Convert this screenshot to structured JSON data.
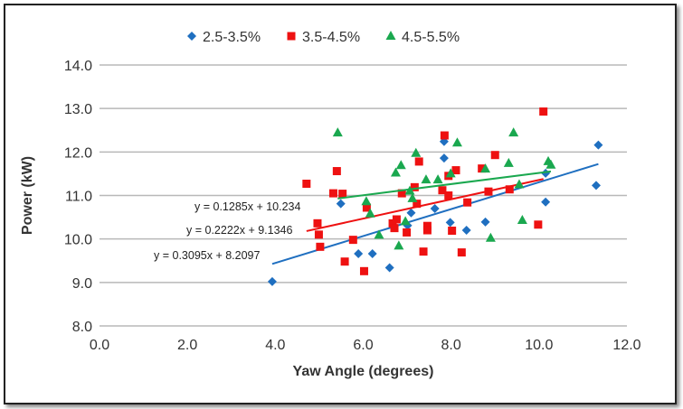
{
  "chart_data": {
    "type": "scatter",
    "title": "",
    "xlabel": "Yaw Angle (degrees)",
    "ylabel": "Power (kW)",
    "xlim": [
      0,
      12
    ],
    "ylim": [
      8,
      14
    ],
    "xticks": [
      "0.0",
      "2.0",
      "4.0",
      "6.0",
      "8.0",
      "10.0",
      "12.0"
    ],
    "yticks": [
      "8.0",
      "9.0",
      "10.0",
      "11.0",
      "12.0",
      "13.0",
      "14.0"
    ],
    "grid": "horizontal",
    "legend_position": "top",
    "series": [
      {
        "name": "2.5-3.5%",
        "color": "#1f6fc0",
        "marker": "diamond",
        "trend": {
          "label": "y = 0.3095x + 8.2097",
          "slope": 0.3095,
          "intercept": 8.2097,
          "xrange": [
            3.93,
            11.35
          ]
        },
        "points": [
          [
            3.93,
            9.02
          ],
          [
            5.49,
            10.81
          ],
          [
            5.89,
            9.66
          ],
          [
            6.21,
            9.66
          ],
          [
            6.6,
            9.34
          ],
          [
            7.09,
            10.6
          ],
          [
            7.01,
            10.31
          ],
          [
            7.63,
            10.7
          ],
          [
            7.84,
            12.24
          ],
          [
            7.84,
            11.86
          ],
          [
            7.98,
            10.38
          ],
          [
            8.35,
            10.2
          ],
          [
            8.78,
            10.39
          ],
          [
            10.15,
            11.51
          ],
          [
            10.15,
            10.85
          ],
          [
            11.35,
            12.16
          ],
          [
            11.3,
            11.23
          ]
        ]
      },
      {
        "name": "3.5-4.5%",
        "color": "#ee1111",
        "marker": "square",
        "trend": {
          "label": "y = 0.2222x + 9.1346",
          "slope": 0.2222,
          "intercept": 9.1346,
          "xrange": [
            4.71,
            10.1
          ]
        },
        "points": [
          [
            4.71,
            11.27
          ],
          [
            5.4,
            11.56
          ],
          [
            5.32,
            11.05
          ],
          [
            5.53,
            11.04
          ],
          [
            4.96,
            10.36
          ],
          [
            4.99,
            10.1
          ],
          [
            5.02,
            9.82
          ],
          [
            5.77,
            9.98
          ],
          [
            5.58,
            9.48
          ],
          [
            6.02,
            9.26
          ],
          [
            6.08,
            10.72
          ],
          [
            6.67,
            10.36
          ],
          [
            6.76,
            10.45
          ],
          [
            6.71,
            10.25
          ],
          [
            6.99,
            10.15
          ],
          [
            6.88,
            11.05
          ],
          [
            7.17,
            11.19
          ],
          [
            7.22,
            10.81
          ],
          [
            7.27,
            11.78
          ],
          [
            7.37,
            9.71
          ],
          [
            7.46,
            10.3
          ],
          [
            7.46,
            10.2
          ],
          [
            7.85,
            12.38
          ],
          [
            7.94,
            11.45
          ],
          [
            7.8,
            11.12
          ],
          [
            7.94,
            11.0
          ],
          [
            8.02,
            10.19
          ],
          [
            8.11,
            11.58
          ],
          [
            8.37,
            10.84
          ],
          [
            8.24,
            9.69
          ],
          [
            8.7,
            11.62
          ],
          [
            9.0,
            11.93
          ],
          [
            8.85,
            11.09
          ],
          [
            9.33,
            11.14
          ],
          [
            9.98,
            10.33
          ],
          [
            10.1,
            12.93
          ]
        ]
      },
      {
        "name": "4.5-5.5%",
        "color": "#1aa84f",
        "marker": "triangle",
        "trend": {
          "label": "y = 0.1285x + 10.234",
          "slope": 0.1285,
          "intercept": 10.234,
          "xrange": [
            5.42,
            10.27
          ]
        },
        "points": [
          [
            5.42,
            12.44
          ],
          [
            6.07,
            10.86
          ],
          [
            6.16,
            10.58
          ],
          [
            6.36,
            10.09
          ],
          [
            6.81,
            9.84
          ],
          [
            6.74,
            11.52
          ],
          [
            6.86,
            11.69
          ],
          [
            7.2,
            11.97
          ],
          [
            6.96,
            10.4
          ],
          [
            7.06,
            11.1
          ],
          [
            7.12,
            10.93
          ],
          [
            7.43,
            11.36
          ],
          [
            7.7,
            11.36
          ],
          [
            7.99,
            11.5
          ],
          [
            8.14,
            12.21
          ],
          [
            8.78,
            11.61
          ],
          [
            8.9,
            10.02
          ],
          [
            9.31,
            11.74
          ],
          [
            9.42,
            12.44
          ],
          [
            9.55,
            11.25
          ],
          [
            9.62,
            10.43
          ],
          [
            10.21,
            11.78
          ],
          [
            10.27,
            11.7
          ]
        ]
      }
    ]
  }
}
